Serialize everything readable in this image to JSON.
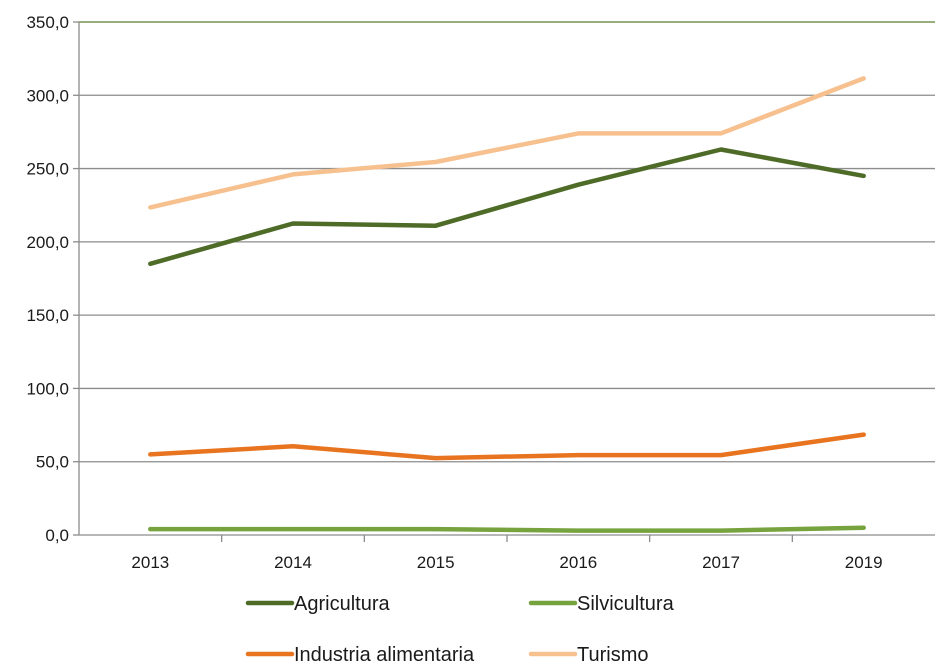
{
  "chart_data": {
    "type": "line",
    "categories": [
      "2013",
      "2014",
      "2015",
      "2016",
      "2017",
      "2019"
    ],
    "series": [
      {
        "name": "Agricultura",
        "color": "#4e6b28",
        "values": [
          185.0,
          212.5,
          211.0,
          239.0,
          263.0,
          245.0
        ]
      },
      {
        "name": "Silvicultura",
        "color": "#77a33f",
        "values": [
          4.0,
          4.0,
          4.0,
          3.0,
          3.0,
          5.0
        ]
      },
      {
        "name": "Industria alimentaria",
        "color": "#e87420",
        "values": [
          55.0,
          60.5,
          52.5,
          54.5,
          54.5,
          68.5
        ]
      },
      {
        "name": "Turismo",
        "color": "#f7c08f",
        "values": [
          223.5,
          246.0,
          254.5,
          274.0,
          274.0,
          311.5
        ]
      }
    ],
    "ylim": [
      0,
      350
    ],
    "yticks": [
      "0,0",
      "50,0",
      "100,0",
      "150,0",
      "200,0",
      "250,0",
      "300,0",
      "350,0"
    ],
    "grid": true,
    "legend_position": "bottom"
  }
}
